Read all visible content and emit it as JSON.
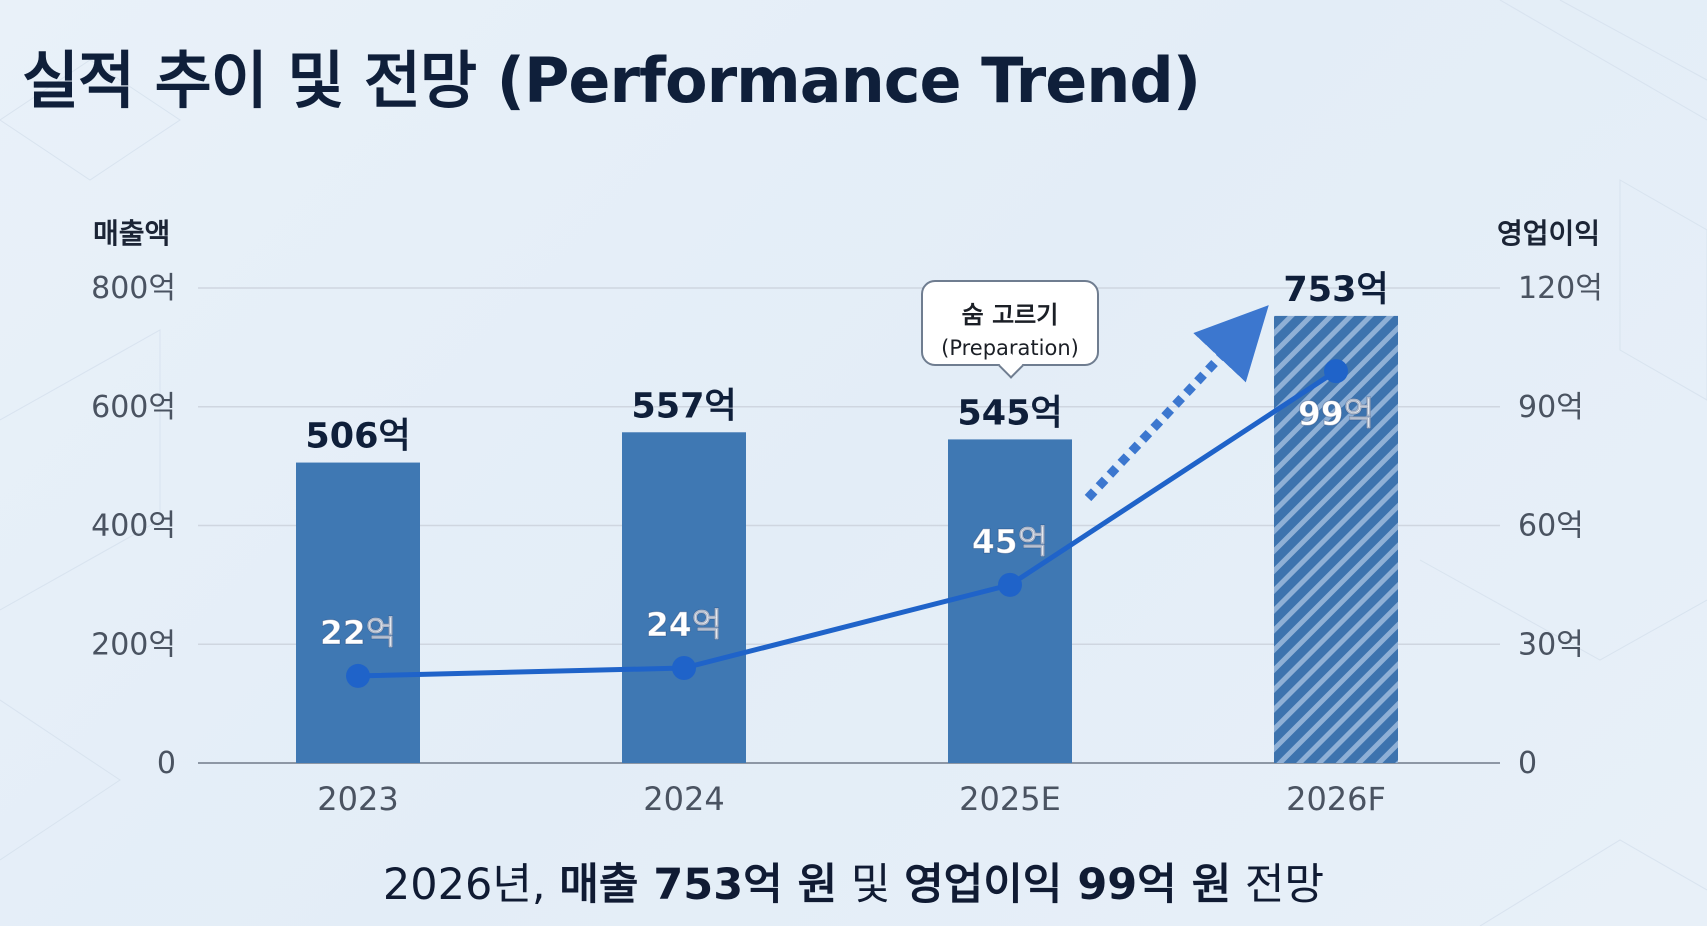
{
  "page": {
    "title": "실적 추이 및 전망 (Performance Trend)",
    "callout": {
      "main": "숨 고르기",
      "sub": "(Preparation)"
    },
    "footnote": {
      "prefix": "2026년, ",
      "bold1": "매출 753억 원",
      "middle": " 및 ",
      "bold2": "영업이익 99억 원",
      "suffix": " 전망"
    },
    "colors": {
      "bar": "#3f78b3",
      "bar_forecast_base": "#3d73ae",
      "bar_forecast_stripe": "#8fb0d6",
      "line": "#1f63c9",
      "forecast_arrow": "#1f63c9",
      "axis_text": "#4a5361",
      "grid": "#cfd6e0"
    }
  },
  "chart_data": {
    "type": "bar",
    "categories": [
      "2023",
      "2024",
      "2025E",
      "2026F"
    ],
    "series": [
      {
        "type": "bar",
        "axis": "left",
        "values": [
          506,
          557,
          545,
          753
        ],
        "labels": [
          "506억",
          "557억",
          "545억",
          "753억"
        ],
        "forecast_index": 3
      },
      {
        "type": "line",
        "axis": "right",
        "values": [
          22,
          24,
          45,
          99
        ],
        "labels": [
          "22억",
          "24억",
          "45억",
          "99억"
        ]
      }
    ],
    "ylabel": "매출액",
    "y2label": "영업이익",
    "ylim": [
      0,
      800
    ],
    "y2lim": [
      0,
      120
    ],
    "yticks": [
      "0",
      "200억",
      "400억",
      "600억",
      "800억"
    ],
    "y2ticks": [
      "0",
      "30억",
      "60억",
      "90억",
      "120억"
    ],
    "grid": true,
    "annotations": [
      "forecast-arrow from 2025E toward 2026F"
    ]
  }
}
